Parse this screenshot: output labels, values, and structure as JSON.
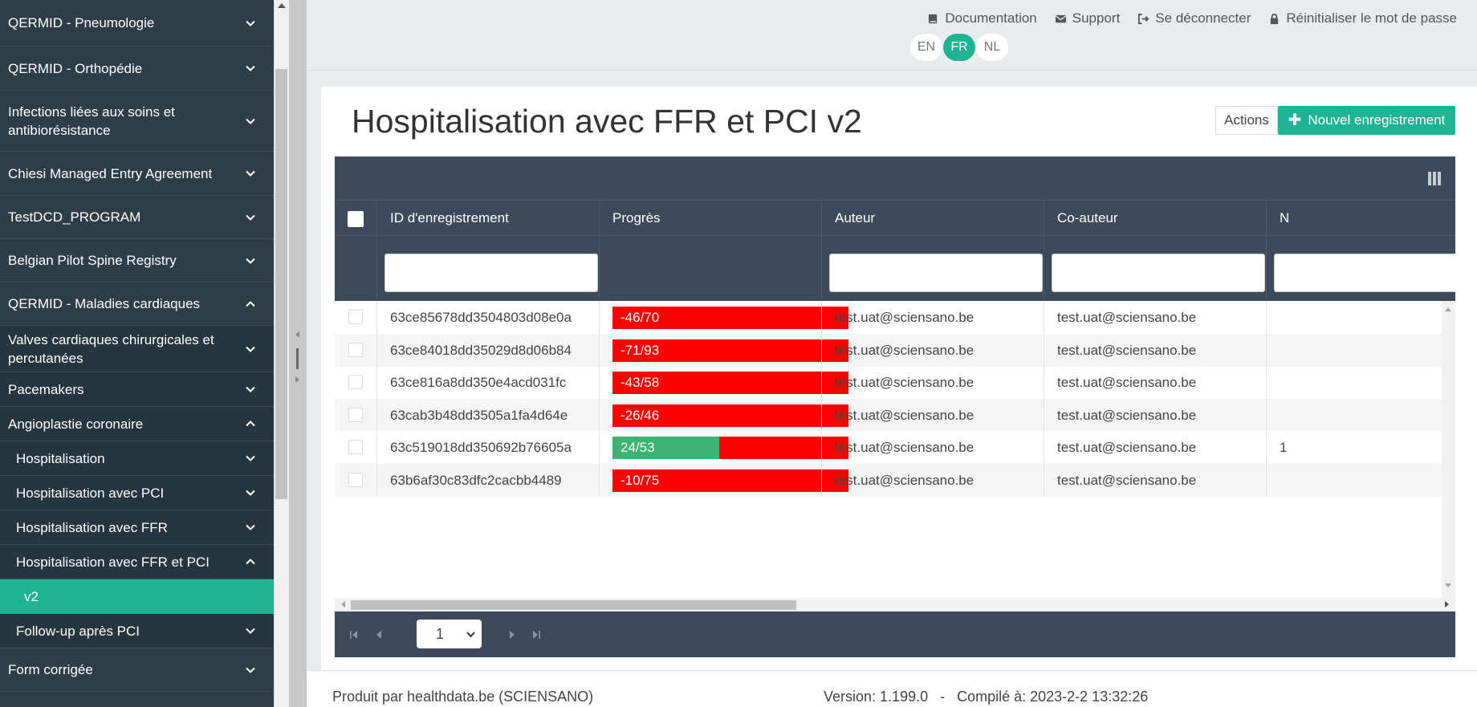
{
  "sidebar": {
    "items": [
      {
        "label": "QERMID - Pneumologie",
        "expanded": false
      },
      {
        "label": "QERMID - Orthopédie",
        "expanded": false
      },
      {
        "label": "Infections liées aux soins et antibiorésistance",
        "expanded": false
      },
      {
        "label": "Chiesi Managed Entry Agreement",
        "expanded": false
      },
      {
        "label": "TestDCD_PROGRAM",
        "expanded": false
      },
      {
        "label": "Belgian Pilot Spine Registry",
        "expanded": false
      },
      {
        "label": "QERMID - Maladies cardiaques",
        "expanded": true
      },
      {
        "label": "Valves cardiaques chirurgicales et percutanées",
        "expanded": false
      },
      {
        "label": "Pacemakers",
        "expanded": false
      },
      {
        "label": "Angioplastie coronaire",
        "expanded": true
      },
      {
        "label": "Hospitalisation",
        "expanded": false
      },
      {
        "label": "Hospitalisation avec PCI",
        "expanded": false
      },
      {
        "label": "Hospitalisation avec FFR",
        "expanded": false
      },
      {
        "label": "Hospitalisation avec FFR et PCI",
        "expanded": true
      },
      {
        "label": "v2",
        "active": true
      },
      {
        "label": "Follow-up après PCI",
        "expanded": false
      },
      {
        "label": "Form corrigée",
        "expanded": false
      }
    ]
  },
  "topbar": {
    "links": {
      "documentation": "Documentation",
      "support": "Support",
      "logout": "Se déconnecter",
      "reset_password": "Réinitialiser le mot de passe"
    },
    "languages": [
      "EN",
      "FR",
      "NL"
    ],
    "active_language": "FR"
  },
  "page": {
    "title": "Hospitalisation avec FFR et PCI v2",
    "actions_label": "Actions",
    "new_record_label": "Nouvel enregistrement"
  },
  "grid": {
    "columns": [
      "ID d'enregistrement",
      "Progrès",
      "Auteur",
      "Co-auteur",
      "N"
    ],
    "rows": [
      {
        "id": "63ce85678dd3504803d08e0a",
        "progress": "-46/70",
        "progress_fraction": 0,
        "author": "test.uat@sciensano.be",
        "coauthor": "test.uat@sciensano.be",
        "extra": ""
      },
      {
        "id": "63ce84018dd35029d8d06b84",
        "progress": "-71/93",
        "progress_fraction": 0,
        "author": "test.uat@sciensano.be",
        "coauthor": "test.uat@sciensano.be",
        "extra": ""
      },
      {
        "id": "63ce816a8dd350e4acd031fc",
        "progress": "-43/58",
        "progress_fraction": 0,
        "author": "test.uat@sciensano.be",
        "coauthor": "test.uat@sciensano.be",
        "extra": ""
      },
      {
        "id": "63cab3b48dd3505a1fa4d64e",
        "progress": "-26/46",
        "progress_fraction": 0,
        "author": "test.uat@sciensano.be",
        "coauthor": "test.uat@sciensano.be",
        "extra": ""
      },
      {
        "id": "63c519018dd350692b76605a",
        "progress": "24/53",
        "progress_fraction": 0.453,
        "author": "test.uat@sciensano.be",
        "coauthor": "test.uat@sciensano.be",
        "extra": "1"
      },
      {
        "id": "63b6af30c83dfc2cacbb4489",
        "progress": "-10/75",
        "progress_fraction": 0,
        "author": "test.uat@sciensano.be",
        "coauthor": "test.uat@sciensano.be",
        "extra": ""
      }
    ],
    "page": "1"
  },
  "footer": {
    "left": "Produit par healthdata.be (SCIENSANO)",
    "right": "Version: 1.199.0   -   Compilé à: 2023-2-2 13:32:26"
  },
  "colors": {
    "sidebar_bg": "#2d3e48",
    "accent": "#1db394",
    "grid_header": "#3d4a5c",
    "progress_bad": "#ff0000",
    "progress_good": "#3cb371"
  }
}
